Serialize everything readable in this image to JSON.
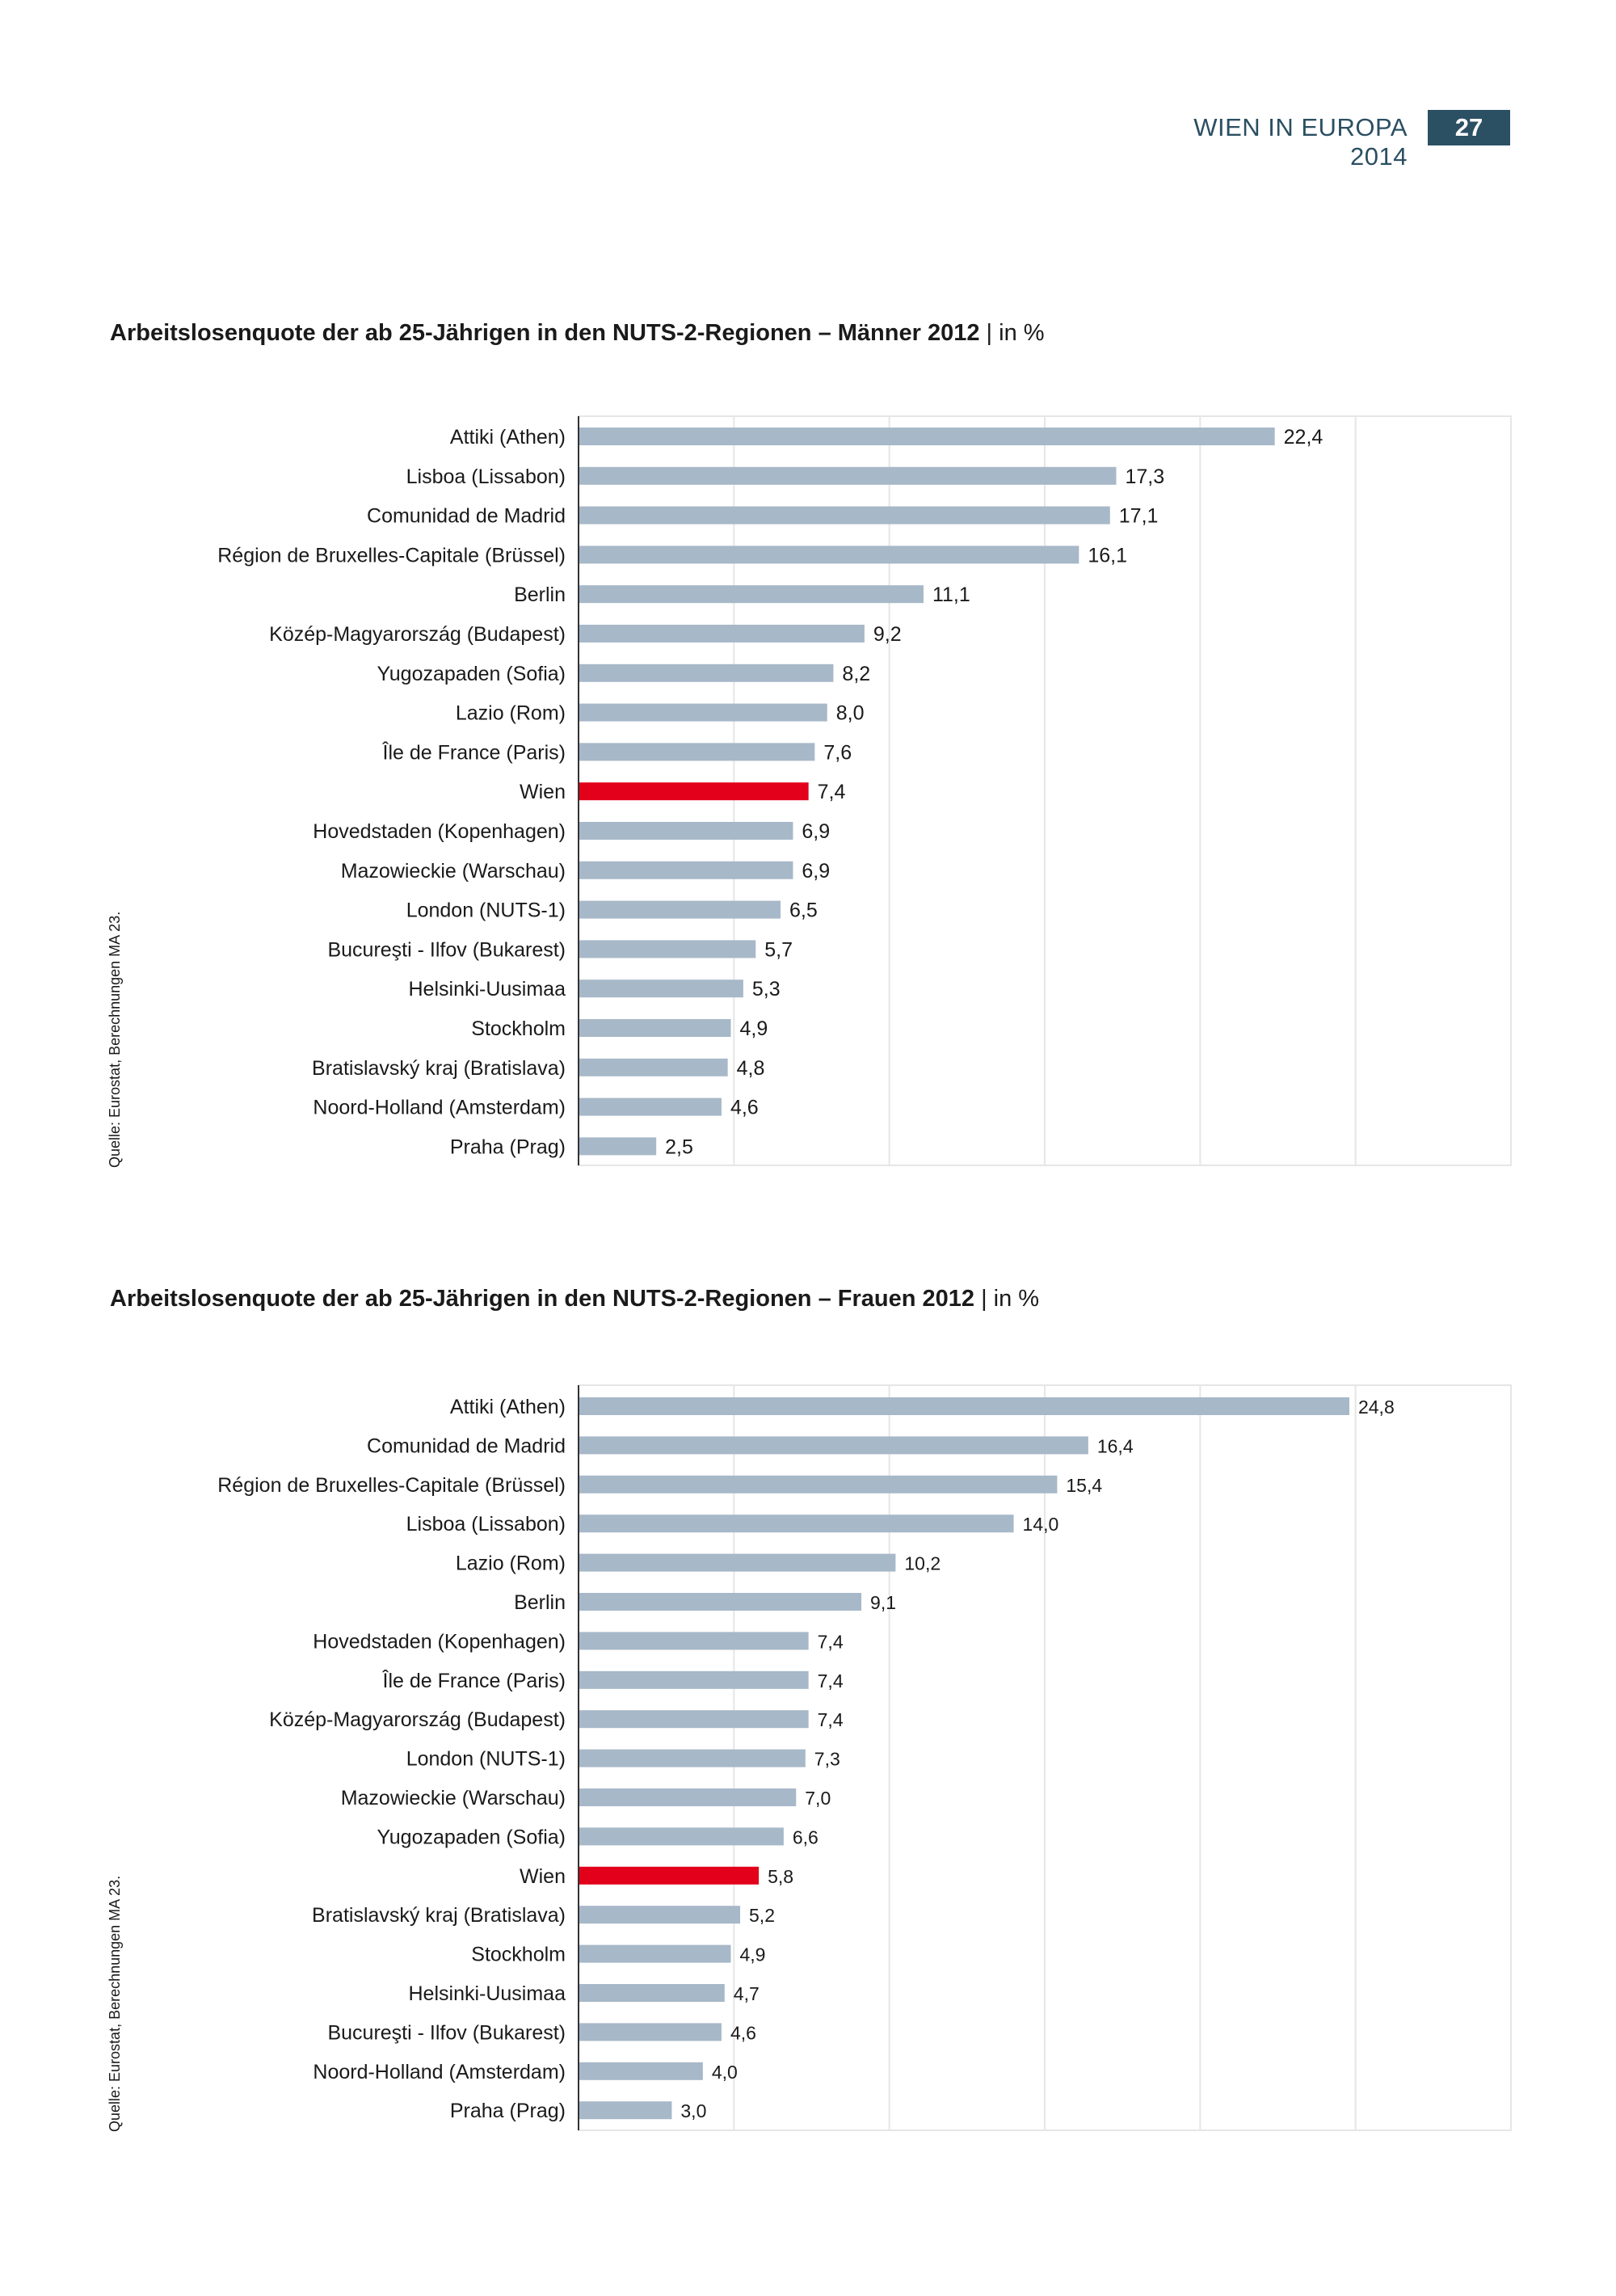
{
  "header": {
    "title": "WIEN IN EUROPA 2014",
    "page_number": "27",
    "page_box_color": "#2b5064"
  },
  "chart_data": [
    {
      "type": "bar",
      "orientation": "horizontal",
      "title": "Arbeitslosenquote der ab 25-Jährigen in den NUTS-2-Regionen – Männer 2012",
      "unit": "| in %",
      "source": "Quelle: Eurostat, Berechnungen  MA 23.",
      "xlim": [
        0,
        30
      ],
      "grid": true,
      "grid_step": 5,
      "bar_color": "#a7b8c8",
      "highlight_color": "#e2001a",
      "highlight": "Wien",
      "categories": [
        "Attiki (Athen)",
        "Lisboa (Lissabon)",
        "Comunidad de Madrid",
        "Région de Bruxelles-Capitale (Brüssel)",
        "Berlin",
        "Közép-Magyarország (Budapest)",
        "Yugozapaden (Sofia)",
        "Lazio (Rom)",
        "Île de France (Paris)",
        "Wien",
        "Hovedstaden (Kopenhagen)",
        "Mazowieckie (Warschau)",
        "London (NUTS-1)",
        "Bucureşti - Ilfov (Bukarest)",
        "Helsinki-Uusimaa",
        "Stockholm",
        "Bratislavský kraj (Bratislava)",
        "Noord-Holland (Amsterdam)",
        "Praha (Prag)"
      ],
      "values": [
        22.4,
        17.3,
        17.1,
        16.1,
        11.1,
        9.2,
        8.2,
        8.0,
        7.6,
        7.4,
        6.9,
        6.9,
        6.5,
        5.7,
        5.3,
        4.9,
        4.8,
        4.6,
        2.5
      ],
      "value_labels": [
        "22,4",
        "17,3",
        "17,1",
        "16,1",
        "11,1",
        "9,2",
        "8,2",
        "8,0",
        "7,6",
        "7,4",
        "6,9",
        "6,9",
        "6,5",
        "5,7",
        "5,3",
        "4,9",
        "4,8",
        "4,6",
        "2,5"
      ]
    },
    {
      "type": "bar",
      "orientation": "horizontal",
      "title": "Arbeitslosenquote der ab 25-Jährigen in den NUTS-2-Regionen – Frauen 2012",
      "unit": "| in %",
      "source": "Quelle: Eurostat, Berechnungen  MA 23.",
      "xlim": [
        0,
        30
      ],
      "grid": true,
      "grid_step": 5,
      "bar_color": "#a7b8c8",
      "highlight_color": "#e2001a",
      "highlight": "Wien",
      "categories": [
        "Attiki (Athen)",
        "Comunidad de Madrid",
        "Région de Bruxelles-Capitale (Brüssel)",
        "Lisboa (Lissabon)",
        "Lazio (Rom)",
        "Berlin",
        "Hovedstaden (Kopenhagen)",
        "Île de France (Paris)",
        "Közép-Magyarország (Budapest)",
        "London (NUTS-1)",
        "Mazowieckie (Warschau)",
        "Yugozapaden (Sofia)",
        "Wien",
        "Bratislavský kraj (Bratislava)",
        "Stockholm",
        "Helsinki-Uusimaa",
        "Bucureşti - Ilfov (Bukarest)",
        "Noord-Holland (Amsterdam)",
        "Praha (Prag)"
      ],
      "values": [
        24.8,
        16.4,
        15.4,
        14.0,
        10.2,
        9.1,
        7.4,
        7.4,
        7.4,
        7.3,
        7.0,
        6.6,
        5.8,
        5.2,
        4.9,
        4.7,
        4.6,
        4.0,
        3.0
      ],
      "value_labels": [
        "24,8",
        "16,4",
        "15,4",
        "14,0",
        "10,2",
        "9,1",
        "7,4",
        "7,4",
        "7,4",
        "7,3",
        "7,0",
        "6,6",
        "5,8",
        "5,2",
        "4,9",
        "4,7",
        "4,6",
        "4,0",
        "3,0"
      ]
    }
  ]
}
